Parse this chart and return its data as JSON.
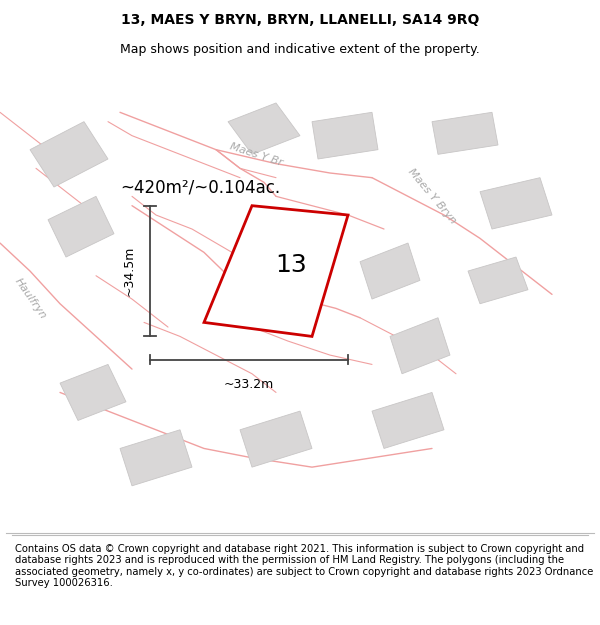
{
  "title_line1": "13, MAES Y BRYN, BRYN, LLANELLI, SA14 9RQ",
  "title_line2": "Map shows position and indicative extent of the property.",
  "footer_text": "Contains OS data © Crown copyright and database right 2021. This information is subject to Crown copyright and database rights 2023 and is reproduced with the permission of HM Land Registry. The polygons (including the associated geometry, namely x, y co-ordinates) are subject to Crown copyright and database rights 2023 Ordnance Survey 100026316.",
  "background_color": "#ffffff",
  "map_bg_color": "#f2f0f0",
  "plot_label": "13",
  "area_text": "~420m²/~0.104ac.",
  "dim_width": "~33.2m",
  "dim_height": "~34.5m",
  "road_label_1": "Maes Y Br",
  "road_label_2": "Maes Y Bryn",
  "road_label_3": "Haulfryn",
  "title_fontsize": 10,
  "subtitle_fontsize": 9,
  "footer_fontsize": 7.2,
  "building_color": "#d9d7d7",
  "road_line_color": "#f0a0a0",
  "road_line_lw": 1.0,
  "property_edge_color": "#cc0000",
  "property_fill": "#ffffff",
  "dim_line_color": "#444444",
  "road_label_color": "#aaaaaa",
  "area_text_fontsize": 12,
  "label_fontsize": 18
}
